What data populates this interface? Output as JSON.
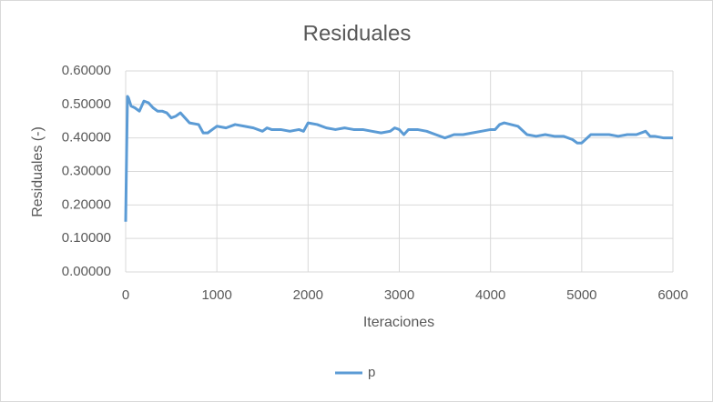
{
  "chart_data": {
    "type": "line",
    "title": "Residuales",
    "x_label": "Iteraciones",
    "y_label": "Residuales (-)",
    "x": [
      0,
      10,
      20,
      30,
      60,
      100,
      150,
      200,
      250,
      300,
      350,
      400,
      450,
      500,
      550,
      600,
      650,
      700,
      800,
      850,
      900,
      950,
      1000,
      1100,
      1200,
      1300,
      1400,
      1500,
      1550,
      1600,
      1700,
      1800,
      1900,
      1950,
      2000,
      2100,
      2200,
      2300,
      2400,
      2500,
      2600,
      2700,
      2800,
      2900,
      2950,
      3000,
      3050,
      3100,
      3200,
      3300,
      3400,
      3500,
      3600,
      3700,
      3800,
      3900,
      4000,
      4050,
      4100,
      4150,
      4300,
      4400,
      4500,
      4600,
      4700,
      4800,
      4900,
      4950,
      5000,
      5100,
      5200,
      5300,
      5400,
      5500,
      5600,
      5700,
      5750,
      5800,
      5900,
      6000
    ],
    "series": [
      {
        "name": "p",
        "color": "#5b9bd5",
        "values": [
          0.15,
          0.35,
          0.524,
          0.52,
          0.495,
          0.49,
          0.48,
          0.51,
          0.505,
          0.49,
          0.48,
          0.48,
          0.475,
          0.46,
          0.465,
          0.475,
          0.46,
          0.445,
          0.44,
          0.415,
          0.415,
          0.425,
          0.435,
          0.43,
          0.44,
          0.435,
          0.43,
          0.42,
          0.43,
          0.425,
          0.425,
          0.42,
          0.425,
          0.42,
          0.445,
          0.44,
          0.43,
          0.425,
          0.43,
          0.425,
          0.425,
          0.42,
          0.415,
          0.42,
          0.43,
          0.425,
          0.41,
          0.425,
          0.425,
          0.42,
          0.41,
          0.4,
          0.41,
          0.41,
          0.415,
          0.42,
          0.425,
          0.425,
          0.44,
          0.445,
          0.435,
          0.41,
          0.405,
          0.41,
          0.405,
          0.405,
          0.395,
          0.385,
          0.385,
          0.41,
          0.41,
          0.41,
          0.405,
          0.41,
          0.41,
          0.42,
          0.405,
          0.405,
          0.4,
          0.4
        ]
      }
    ],
    "xlim": [
      0,
      6000
    ],
    "xticks": [
      0,
      1000,
      2000,
      3000,
      4000,
      5000,
      6000
    ],
    "ylim": [
      0,
      0.6
    ],
    "yticks": [
      {
        "value": 0,
        "label": "0.00000"
      },
      {
        "value": 0.1,
        "label": "0.10000"
      },
      {
        "value": 0.2,
        "label": "0.20000"
      },
      {
        "value": 0.3,
        "label": "0.30000"
      },
      {
        "value": 0.4,
        "label": "0.40000"
      },
      {
        "value": 0.5,
        "label": "0.50000"
      },
      {
        "value": 0.6,
        "label": "0.60000"
      }
    ],
    "grid": true,
    "legend": "bottom"
  }
}
